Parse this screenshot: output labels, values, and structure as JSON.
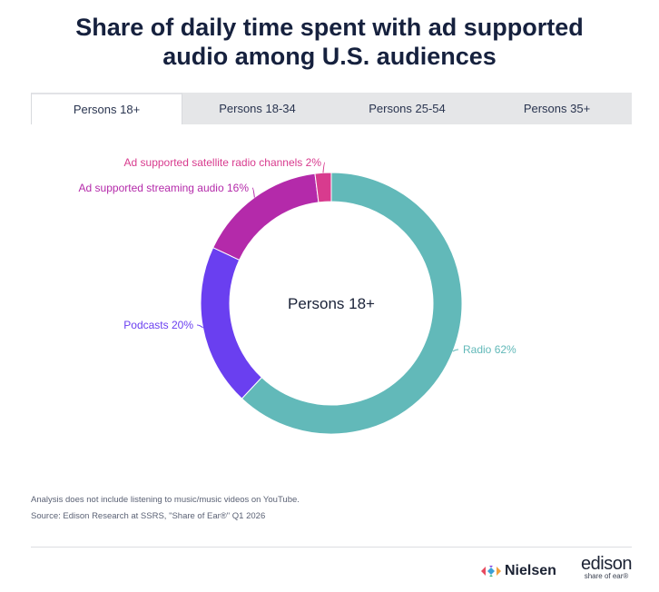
{
  "title_lines": [
    "Share of daily time spent with ad supported",
    "audio among U.S. audiences"
  ],
  "tabs": [
    {
      "label": "Persons 18+",
      "active": true
    },
    {
      "label": "Persons 18-34",
      "active": false
    },
    {
      "label": "Persons 25-54",
      "active": false
    },
    {
      "label": "Persons 35+",
      "active": false
    }
  ],
  "chart_data": {
    "type": "pie",
    "donut": true,
    "center_label": "Persons 18+",
    "slices": [
      {
        "label": "Radio 62%",
        "value": 62,
        "color": "#62b9b9"
      },
      {
        "label": "Podcasts 20%",
        "value": 20,
        "color": "#6a3ff0"
      },
      {
        "label": "Ad supported streaming audio 16%",
        "value": 16,
        "color": "#b42aaa"
      },
      {
        "label": "Ad supported satellite radio channels 2%",
        "value": 2,
        "color": "#d83b8e"
      }
    ]
  },
  "footnotes": [
    "Analysis does not include listening to music/music videos on YouTube.",
    "Source: Edison Research at SSRS, \"Share of Ear®\" Q1 2026"
  ],
  "logos": {
    "nielsen": "Nielsen",
    "edison": "edison",
    "edison_sub": "share of ear®"
  }
}
